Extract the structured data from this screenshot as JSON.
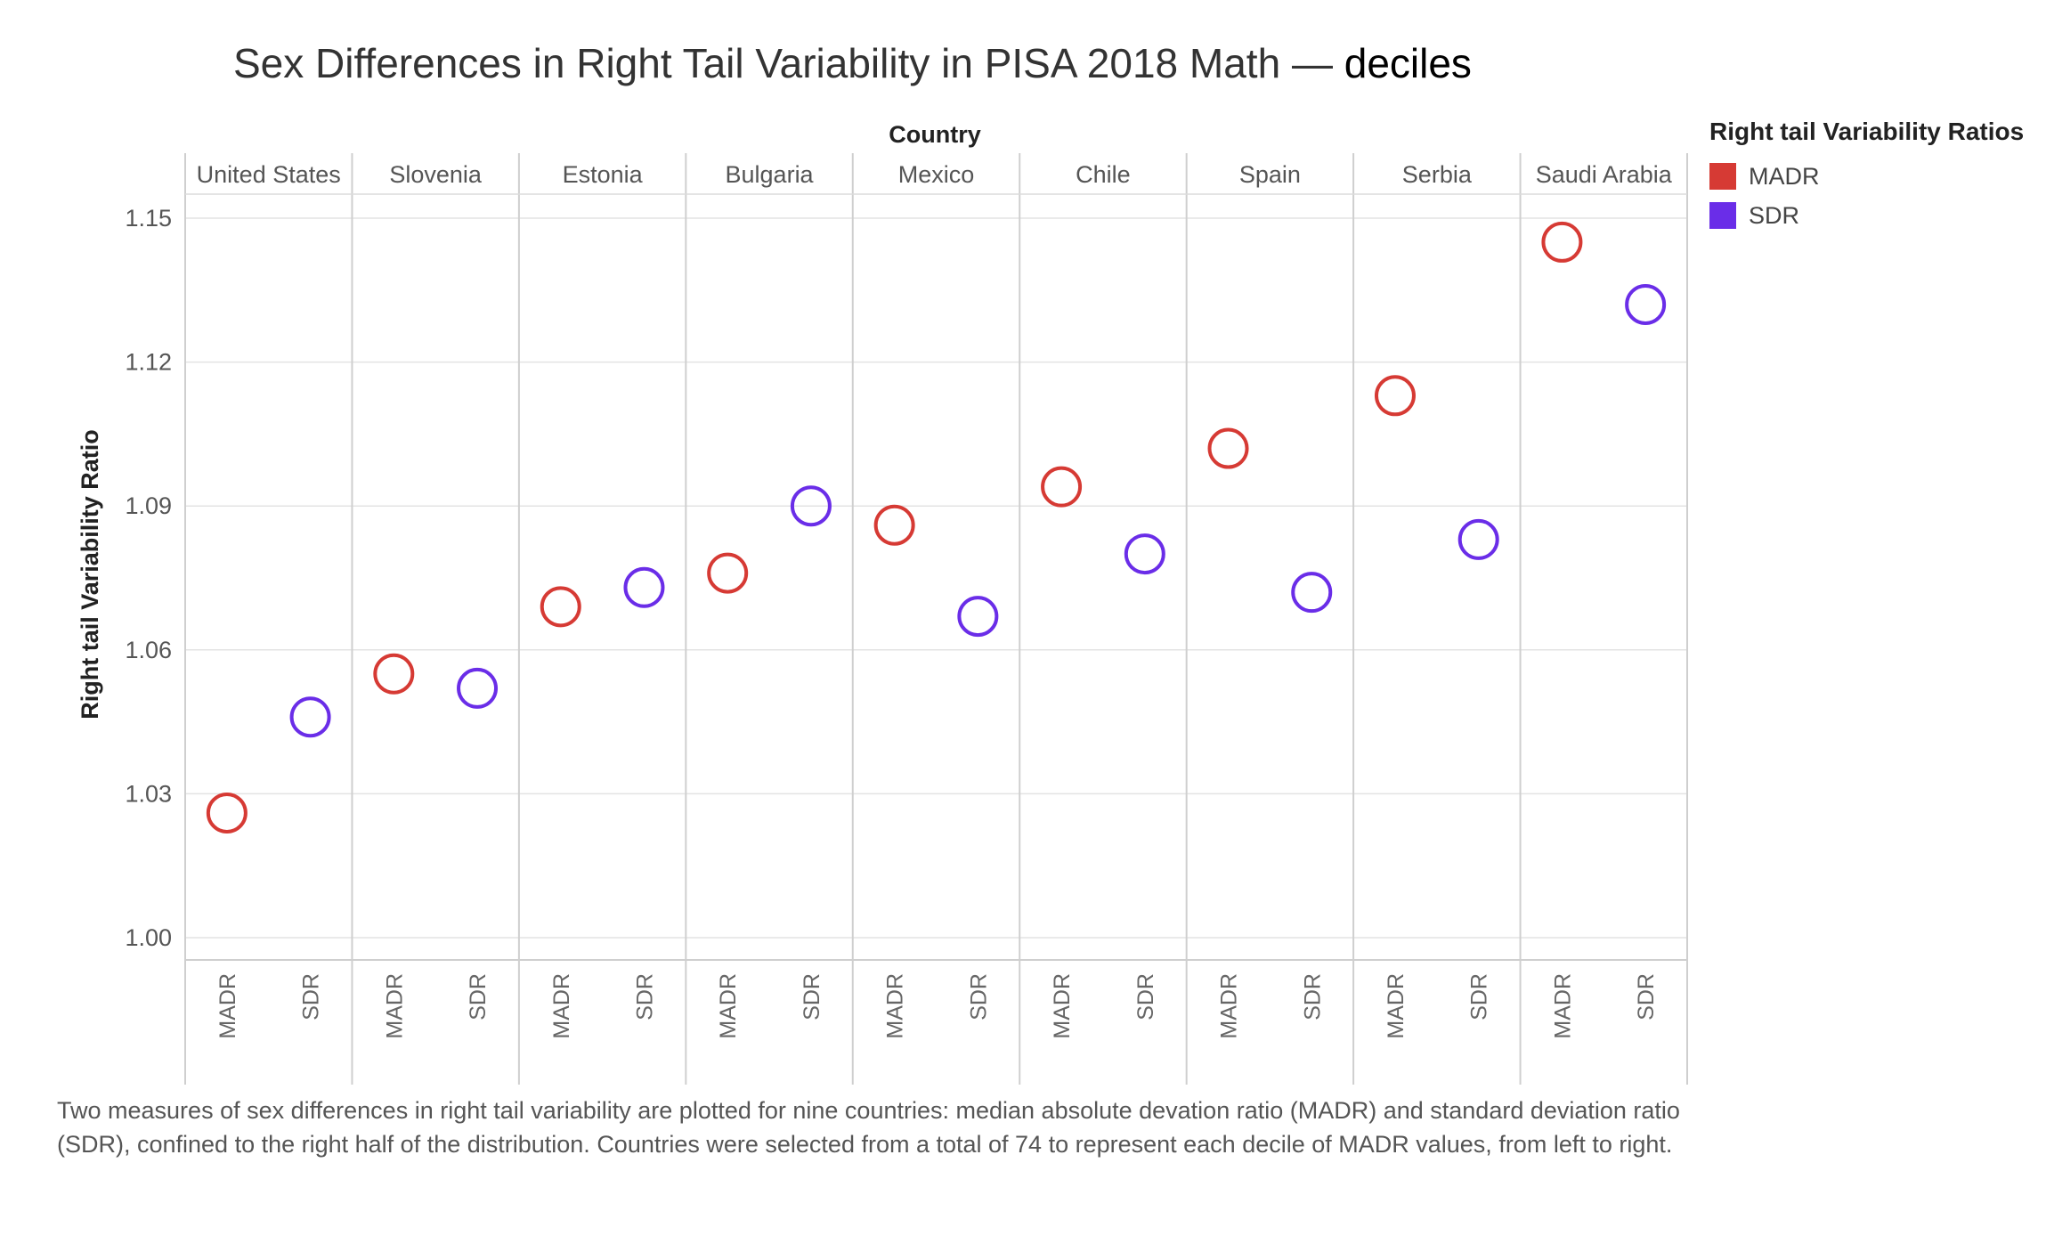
{
  "title": {
    "main": "Sex Differences in Right Tail Variability in PISA 2018 Math",
    "dash": "—",
    "highlight": "deciles"
  },
  "legend": {
    "title": "Right tail Variability Ratios",
    "items": [
      {
        "label": "MADR",
        "color": "#d63a34"
      },
      {
        "label": "SDR",
        "color": "#6a2de8"
      }
    ]
  },
  "caption": "Two measures of sex differences in right tail variability are plotted for nine countries: median absolute devation ratio (MADR) and standard deviation ratio (SDR), confined to the right half of the distribution. Countries were selected from a total of 74 to represent each decile of MADR values, from left to right.",
  "chart_data": {
    "type": "scatter",
    "marker": "hollow-circle",
    "column_header": "Country",
    "xlabel": "",
    "ylabel": "Right tail Variability Ratio",
    "ylim": [
      0.995,
      1.155
    ],
    "yticks": [
      1.0,
      1.03,
      1.06,
      1.09,
      1.12,
      1.15
    ],
    "ytick_labels": [
      "1.00",
      "1.03",
      "1.06",
      "1.09",
      "1.12",
      "1.15"
    ],
    "grid": true,
    "legend_position": "right",
    "countries": [
      "United States",
      "Slovenia",
      "Estonia",
      "Bulgaria",
      "Mexico",
      "Chile",
      "Spain",
      "Serbia",
      "Saudi Arabia"
    ],
    "measures": [
      "MADR",
      "SDR"
    ],
    "series": [
      {
        "name": "MADR",
        "values": [
          1.026,
          1.055,
          1.069,
          1.076,
          1.086,
          1.094,
          1.102,
          1.113,
          1.145
        ]
      },
      {
        "name": "SDR",
        "values": [
          1.046,
          1.052,
          1.073,
          1.09,
          1.067,
          1.08,
          1.072,
          1.083,
          1.132
        ]
      }
    ]
  }
}
